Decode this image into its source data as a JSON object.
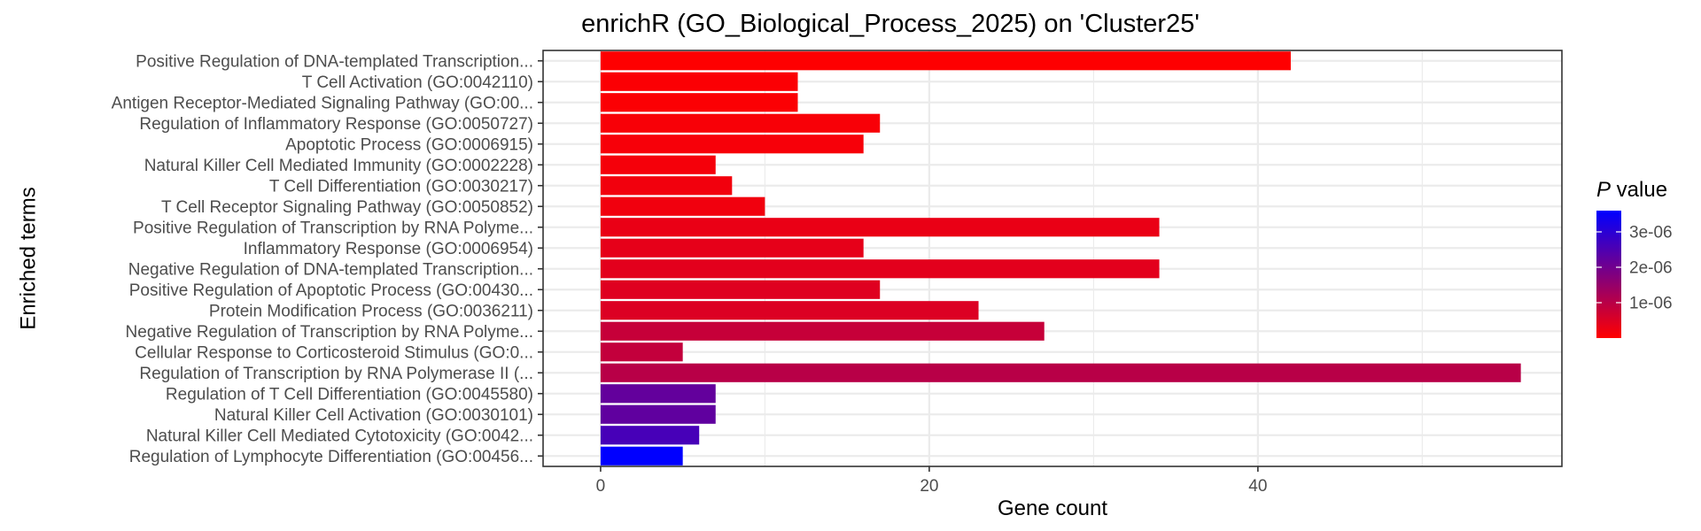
{
  "chart_data": {
    "type": "bar",
    "orientation": "horizontal",
    "title": "enrichR (GO_Biological_Process_2025) on 'Cluster25'",
    "xlabel": "Gene count",
    "ylabel": "Enriched terms",
    "xlim": [
      -3.5,
      58.5
    ],
    "xticks": [
      0,
      20,
      40
    ],
    "grid": true,
    "legend": {
      "title_italic": "P",
      "title_rest": " value",
      "placement": "right",
      "ticks": [
        {
          "label": "3e-06",
          "value": 3e-06
        },
        {
          "label": "2e-06",
          "value": 2e-06
        },
        {
          "label": "1e-06",
          "value": 1e-06
        }
      ],
      "range": [
        0,
        3.6e-06
      ],
      "color_low": "#ff0000",
      "color_high": "#0000ff"
    },
    "categories": [
      "Positive Regulation of DNA-templated Transcription...",
      "T Cell Activation (GO:0042110)",
      "Antigen Receptor-Mediated Signaling Pathway (GO:00...",
      "Regulation of Inflammatory Response (GO:0050727)",
      "Apoptotic Process (GO:0006915)",
      "Natural Killer Cell Mediated Immunity (GO:0002228)",
      "T Cell Differentiation (GO:0030217)",
      "T Cell Receptor Signaling Pathway (GO:0050852)",
      "Positive Regulation of Transcription by RNA Polyme...",
      "Inflammatory Response (GO:0006954)",
      "Negative Regulation of DNA-templated Transcription...",
      "Positive Regulation of Apoptotic Process (GO:00430...",
      "Protein Modification Process (GO:0036211)",
      "Negative Regulation of Transcription by RNA Polyme...",
      "Cellular Response to Corticosteroid Stimulus (GO:0...",
      "Regulation of Transcription by RNA Polymerase II (...",
      "Regulation of T Cell Differentiation (GO:0045580)",
      "Natural Killer Cell Activation (GO:0030101)",
      "Natural Killer Cell Mediated Cytotoxicity (GO:0042...",
      "Regulation of Lymphocyte Differentiation (GO:00456..."
    ],
    "values": [
      42,
      12,
      12,
      17,
      16,
      7,
      8,
      10,
      34,
      16,
      34,
      17,
      23,
      27,
      5,
      56,
      7,
      7,
      6,
      5
    ],
    "p_values": [
      1e-08,
      5e-08,
      6e-08,
      1e-07,
      1.2e-07,
      1.4e-07,
      1.8e-07,
      2e-07,
      3e-07,
      3.5e-07,
      4e-07,
      4.5e-07,
      5e-07,
      8e-07,
      8.5e-07,
      1e-06,
      2.2e-06,
      2.25e-06,
      2.6e-06,
      3.6e-06
    ]
  }
}
